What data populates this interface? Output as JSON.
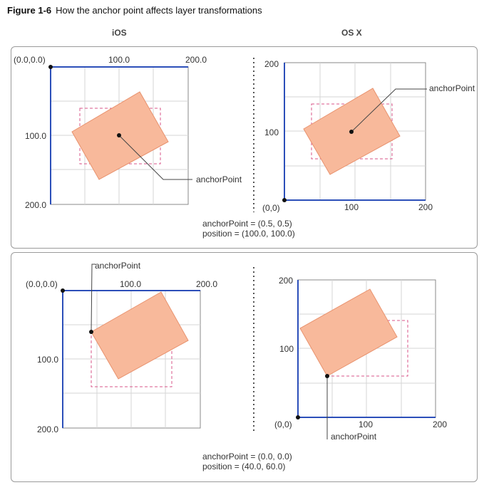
{
  "figure": {
    "number": "Figure 1-6",
    "title": "How the anchor point affects layer transformations"
  },
  "columns": {
    "left": "iOS",
    "right": "OS X"
  },
  "colors": {
    "layer_fill": "#f8b99b",
    "layer_stroke": "#e8926e",
    "dashed_rect": "#d9548a",
    "axis": "#2c4fb9",
    "grid": "#d6d6d6",
    "frame": "#8a8a8a"
  },
  "panels": [
    {
      "ios": {
        "origin_label": "(0.0,0.0)",
        "x_ticks": [
          "100.0",
          "200.0"
        ],
        "y_ticks": [
          "100.0",
          "200.0"
        ],
        "anchor_label": "anchorPoint"
      },
      "osx": {
        "origin_label": "(0,0)",
        "x_ticks": [
          "100",
          "200"
        ],
        "y_ticks": [
          "100",
          "200"
        ],
        "anchor_label": "anchorPoint"
      },
      "caption": {
        "anchor": "anchorPoint = (0.5, 0.5)",
        "position": "position = (100.0, 100.0)"
      }
    },
    {
      "ios": {
        "origin_label": "(0.0,0.0)",
        "x_ticks": [
          "100.0",
          "200.0"
        ],
        "y_ticks": [
          "100.0",
          "200.0"
        ],
        "anchor_label": "anchorPoint"
      },
      "osx": {
        "origin_label": "(0,0)",
        "x_ticks": [
          "100",
          "200"
        ],
        "y_ticks": [
          "100",
          "200"
        ],
        "anchor_label": "anchorPoint"
      },
      "caption": {
        "anchor": "anchorPoint = (0.0, 0.0)",
        "position": "position = (40.0, 60.0)"
      }
    }
  ]
}
